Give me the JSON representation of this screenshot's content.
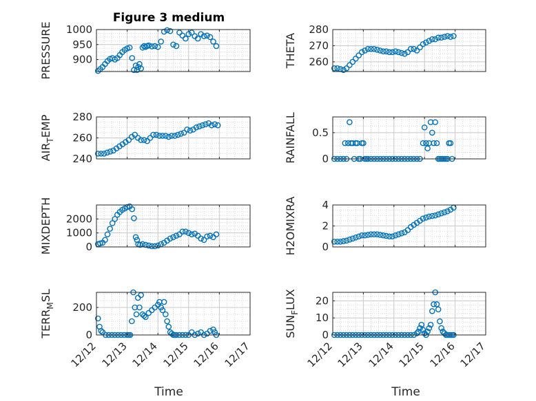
{
  "figure": {
    "title": "Figure 3 medium",
    "x_axis_label": "Time",
    "x_tick_labels": [
      "12/12",
      "12/13",
      "12/14",
      "12/15",
      "12/16",
      "12/17"
    ],
    "marker_color": "#0072BD"
  },
  "chart_data": [
    {
      "type": "scatter",
      "ylabel": "PRESSURE",
      "ylim": [
        860,
        1000
      ],
      "yticks": [
        900,
        950,
        1000
      ],
      "ytick_labels": [
        "900",
        "950",
        "1000"
      ],
      "xlim": [
        0,
        5
      ],
      "grid": true,
      "minor_grid": true,
      "marker": "circle",
      "x": [
        0.05,
        0.12,
        0.2,
        0.28,
        0.36,
        0.44,
        0.52,
        0.6,
        0.68,
        0.76,
        0.84,
        0.92,
        1.0,
        1.08,
        1.16,
        1.22,
        1.28,
        1.32,
        1.36,
        1.4,
        1.45,
        1.5,
        1.55,
        1.6,
        1.65,
        1.7,
        1.8,
        1.9,
        2.0,
        2.1,
        2.2,
        2.3,
        2.4,
        2.5,
        2.6,
        2.7,
        2.8,
        2.9,
        3.0,
        3.1,
        3.2,
        3.3,
        3.4,
        3.5,
        3.6,
        3.7,
        3.8,
        3.9
      ],
      "y": [
        862,
        868,
        875,
        885,
        895,
        902,
        905,
        900,
        905,
        915,
        925,
        932,
        937,
        940,
        905,
        865,
        880,
        865,
        875,
        885,
        870,
        940,
        945,
        942,
        945,
        947,
        944,
        945,
        942,
        960,
        993,
        998,
        995,
        950,
        945,
        990,
        980,
        970,
        985,
        990,
        978,
        970,
        985,
        978,
        980,
        975,
        960,
        945
      ]
    },
    {
      "type": "scatter",
      "ylabel": "THETA",
      "ylim": [
        254,
        280
      ],
      "yticks": [
        260,
        270,
        280
      ],
      "ytick_labels": [
        "260",
        "270",
        "280"
      ],
      "xlim": [
        0,
        5
      ],
      "grid": true,
      "minor_grid": true,
      "marker": "circle",
      "x": [
        0.05,
        0.15,
        0.25,
        0.35,
        0.45,
        0.55,
        0.65,
        0.75,
        0.85,
        0.95,
        1.05,
        1.15,
        1.25,
        1.35,
        1.45,
        1.55,
        1.65,
        1.75,
        1.85,
        1.95,
        2.05,
        2.15,
        2.25,
        2.35,
        2.45,
        2.55,
        2.65,
        2.75,
        2.85,
        2.95,
        3.05,
        3.15,
        3.25,
        3.35,
        3.45,
        3.55,
        3.65,
        3.75,
        3.85,
        3.95
      ],
      "y": [
        256,
        256,
        255.5,
        255,
        256,
        258,
        260,
        262,
        264,
        266,
        267,
        268,
        268,
        268,
        267.5,
        267,
        266.5,
        266.5,
        266,
        266,
        266.5,
        266,
        265.5,
        265,
        266,
        268,
        268,
        267,
        269,
        271,
        272,
        273,
        274,
        274,
        275,
        275,
        275.5,
        276,
        275.5,
        276
      ]
    },
    {
      "type": "scatter",
      "ylabel": "AIR_TEMP",
      "ylabel_main": "AIR",
      "ylabel_sub": "T",
      "ylabel_rest": "EMP",
      "ylim": [
        240,
        280
      ],
      "yticks": [
        240,
        260,
        280
      ],
      "ytick_labels": [
        "240",
        "260",
        "280"
      ],
      "xlim": [
        0,
        5
      ],
      "grid": true,
      "minor_grid": true,
      "marker": "circle",
      "x": [
        0.05,
        0.15,
        0.25,
        0.35,
        0.45,
        0.55,
        0.65,
        0.75,
        0.85,
        0.95,
        1.05,
        1.15,
        1.25,
        1.35,
        1.45,
        1.55,
        1.65,
        1.75,
        1.85,
        1.95,
        2.05,
        2.15,
        2.25,
        2.35,
        2.45,
        2.55,
        2.65,
        2.75,
        2.85,
        2.95,
        3.05,
        3.15,
        3.25,
        3.35,
        3.45,
        3.55,
        3.65,
        3.75,
        3.85,
        3.95
      ],
      "y": [
        245,
        245,
        245,
        246,
        247,
        248,
        250,
        252,
        254,
        256,
        258,
        261,
        263,
        260,
        258,
        258,
        257,
        260,
        263,
        263,
        262,
        262,
        262,
        261,
        262,
        262,
        263,
        264,
        265,
        268,
        267,
        268,
        270,
        271,
        272,
        273,
        274,
        272,
        273,
        272
      ]
    },
    {
      "type": "scatter",
      "ylabel": "RAINFALL",
      "ylim": [
        0,
        0.8
      ],
      "yticks": [
        0,
        0.5
      ],
      "ytick_labels": [
        "0",
        "0.5"
      ],
      "xlim": [
        0,
        5
      ],
      "grid": true,
      "minor_grid": true,
      "marker": "circle",
      "x": [
        0.05,
        0.15,
        0.25,
        0.35,
        0.4,
        0.45,
        0.5,
        0.55,
        0.6,
        0.65,
        0.7,
        0.75,
        0.8,
        0.85,
        0.9,
        0.95,
        1.0,
        1.05,
        1.1,
        1.15,
        1.25,
        1.35,
        1.45,
        1.55,
        1.65,
        1.75,
        1.85,
        1.95,
        2.05,
        2.15,
        2.25,
        2.35,
        2.45,
        2.55,
        2.65,
        2.75,
        2.85,
        2.95,
        3.0,
        3.05,
        3.1,
        3.15,
        3.2,
        3.25,
        3.3,
        3.35,
        3.4,
        3.45,
        3.5,
        3.55,
        3.6,
        3.65,
        3.7,
        3.75,
        3.8,
        3.85,
        3.9
      ],
      "y": [
        0,
        0,
        0,
        0,
        0.3,
        0,
        0.3,
        0.7,
        0.3,
        0.3,
        0,
        0.3,
        0.3,
        0,
        0,
        0.3,
        0.3,
        0,
        0,
        0,
        0,
        0,
        0,
        0,
        0,
        0,
        0,
        0,
        0,
        0,
        0,
        0,
        0,
        0,
        0,
        0,
        0,
        0.3,
        0.6,
        0.3,
        0.2,
        0.3,
        0.7,
        0.5,
        0.3,
        0.7,
        0.3,
        0,
        0,
        0,
        0,
        0,
        0,
        0,
        0.3,
        0.3,
        0
      ]
    },
    {
      "type": "scatter",
      "ylabel": "MIXDEPTH",
      "ylim": [
        0,
        3000
      ],
      "yticks": [
        0,
        1000,
        2000
      ],
      "ytick_labels": [
        "0",
        "1000",
        "2000"
      ],
      "xlim": [
        0,
        5
      ],
      "grid": true,
      "minor_grid": true,
      "marker": "circle",
      "x": [
        0.05,
        0.12,
        0.2,
        0.28,
        0.36,
        0.44,
        0.52,
        0.6,
        0.68,
        0.76,
        0.84,
        0.92,
        1.0,
        1.08,
        1.16,
        1.22,
        1.28,
        1.32,
        1.36,
        1.42,
        1.5,
        1.6,
        1.7,
        1.8,
        1.9,
        2.0,
        2.1,
        2.2,
        2.3,
        2.4,
        2.5,
        2.6,
        2.7,
        2.8,
        2.9,
        3.0,
        3.1,
        3.2,
        3.3,
        3.4,
        3.5,
        3.6,
        3.7,
        3.8,
        3.9
      ],
      "y": [
        200,
        250,
        300,
        500,
        900,
        1300,
        1700,
        2000,
        2300,
        2500,
        2650,
        2750,
        2850,
        2900,
        2700,
        2050,
        700,
        500,
        200,
        150,
        200,
        150,
        100,
        50,
        50,
        100,
        200,
        300,
        450,
        600,
        700,
        800,
        900,
        1100,
        1100,
        1000,
        900,
        950,
        800,
        600,
        500,
        750,
        800,
        700,
        900
      ]
    },
    {
      "type": "scatter",
      "ylabel": "H2OMIXRA",
      "ylim": [
        0,
        4
      ],
      "yticks": [
        0,
        2,
        4
      ],
      "ytick_labels": [
        "0",
        "2",
        "4"
      ],
      "xlim": [
        0,
        5
      ],
      "grid": true,
      "minor_grid": true,
      "marker": "circle",
      "x": [
        0.05,
        0.15,
        0.25,
        0.35,
        0.45,
        0.55,
        0.65,
        0.75,
        0.85,
        0.95,
        1.05,
        1.15,
        1.25,
        1.35,
        1.45,
        1.55,
        1.65,
        1.75,
        1.85,
        1.95,
        2.05,
        2.15,
        2.25,
        2.35,
        2.45,
        2.55,
        2.65,
        2.75,
        2.85,
        2.95,
        3.05,
        3.15,
        3.25,
        3.35,
        3.45,
        3.55,
        3.65,
        3.75,
        3.85,
        3.95
      ],
      "y": [
        0.5,
        0.5,
        0.5,
        0.55,
        0.6,
        0.7,
        0.8,
        0.9,
        1.0,
        1.1,
        1.1,
        1.15,
        1.2,
        1.2,
        1.2,
        1.15,
        1.1,
        1.05,
        1.0,
        1.0,
        1.1,
        1.2,
        1.3,
        1.4,
        1.6,
        1.9,
        2.1,
        2.3,
        2.5,
        2.7,
        2.8,
        2.9,
        2.95,
        3.0,
        3.1,
        3.2,
        3.3,
        3.4,
        3.55,
        3.75
      ]
    },
    {
      "type": "scatter",
      "ylabel": "TERR_MSL",
      "ylabel_main": "TERR",
      "ylabel_sub": "M",
      "ylabel_rest": "SL",
      "ylim": [
        0,
        310
      ],
      "yticks": [
        0,
        200
      ],
      "ytick_labels": [
        "0",
        "200"
      ],
      "xlim": [
        0,
        5
      ],
      "grid": true,
      "minor_grid": true,
      "marker": "circle",
      "x": [
        0.05,
        0.1,
        0.15,
        0.2,
        0.3,
        0.4,
        0.5,
        0.6,
        0.7,
        0.8,
        0.9,
        1.0,
        1.05,
        1.1,
        1.15,
        1.2,
        1.25,
        1.3,
        1.35,
        1.4,
        1.45,
        1.5,
        1.55,
        1.6,
        1.7,
        1.8,
        1.9,
        2.0,
        2.05,
        2.1,
        2.15,
        2.2,
        2.25,
        2.3,
        2.35,
        2.4,
        2.45,
        2.5,
        2.55,
        2.6,
        2.7,
        2.8,
        2.9,
        3.0,
        3.1,
        3.2,
        3.3,
        3.4,
        3.5,
        3.6,
        3.7,
        3.8,
        3.85,
        3.9
      ],
      "y": [
        120,
        60,
        30,
        20,
        0,
        0,
        0,
        0,
        0,
        0,
        0,
        0,
        0,
        0,
        100,
        310,
        200,
        150,
        270,
        200,
        290,
        150,
        140,
        130,
        160,
        180,
        200,
        220,
        240,
        200,
        180,
        240,
        150,
        100,
        60,
        20,
        10,
        0,
        0,
        0,
        0,
        0,
        0,
        0,
        20,
        0,
        10,
        20,
        0,
        10,
        30,
        40,
        20,
        0
      ]
    },
    {
      "type": "scatter",
      "ylabel": "SUN_FLUX",
      "ylabel_main": "SUN",
      "ylabel_sub": "F",
      "ylabel_rest": "LUX",
      "ylim": [
        0,
        25
      ],
      "yticks": [
        0,
        10,
        20
      ],
      "ytick_labels": [
        "0",
        "10",
        "20"
      ],
      "xlim": [
        0,
        5
      ],
      "grid": true,
      "minor_grid": true,
      "marker": "circle",
      "x": [
        0.05,
        0.15,
        0.25,
        0.35,
        0.45,
        0.55,
        0.65,
        0.75,
        0.85,
        0.95,
        1.05,
        1.15,
        1.25,
        1.35,
        1.45,
        1.55,
        1.65,
        1.75,
        1.85,
        1.95,
        2.05,
        2.15,
        2.25,
        2.35,
        2.45,
        2.55,
        2.65,
        2.75,
        2.8,
        2.85,
        2.9,
        2.95,
        3.0,
        3.05,
        3.1,
        3.15,
        3.2,
        3.25,
        3.3,
        3.35,
        3.4,
        3.45,
        3.5,
        3.55,
        3.6,
        3.65,
        3.7,
        3.75,
        3.8,
        3.85,
        3.9,
        3.95
      ],
      "y": [
        0,
        0,
        0,
        0,
        0,
        0,
        0,
        0,
        0,
        0,
        0,
        0,
        0,
        0,
        0,
        0,
        0,
        0,
        0,
        0,
        0,
        0,
        0,
        0,
        0,
        0,
        0,
        1,
        2,
        4,
        6,
        3,
        1,
        0,
        2,
        4,
        6,
        14,
        18,
        25,
        18,
        15,
        8,
        4,
        2,
        1,
        0,
        0,
        0,
        0,
        0,
        0
      ]
    }
  ]
}
